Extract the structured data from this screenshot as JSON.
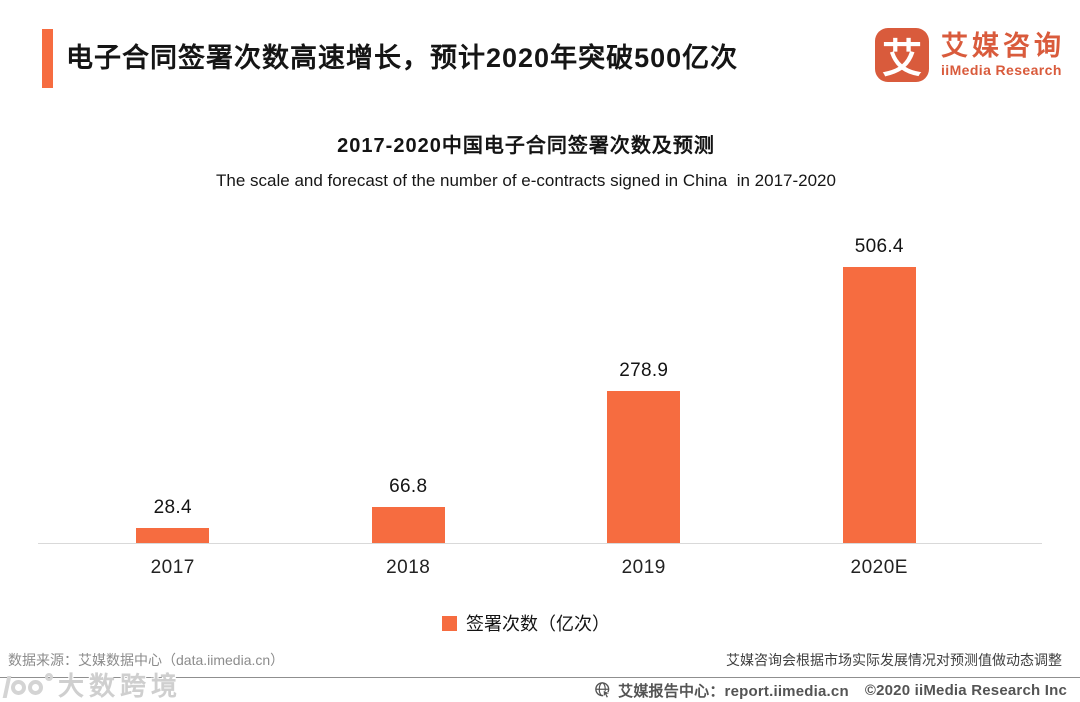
{
  "header": {
    "title": "电子合同签署次数高速增长，预计2020年突破500亿次",
    "logo": {
      "glyph": "艾",
      "name_cn": "艾媒咨询",
      "name_en": "iiMedia Research"
    }
  },
  "chart_data": {
    "type": "bar",
    "title": "2017-2020中国电子合同签署次数及预测",
    "subtitle": "The scale and forecast of the number of e-contracts signed in China  in 2017-2020",
    "categories": [
      "2017",
      "2018",
      "2019",
      "2020E"
    ],
    "series": [
      {
        "name": "签署次数（亿次）",
        "values": [
          28.4,
          66.8,
          278.9,
          506.4
        ]
      }
    ],
    "xlabel": "",
    "ylabel": "",
    "ylim": [
      0,
      550
    ],
    "gridlines": false,
    "data_labels": true,
    "legend_position": "bottom",
    "bar_color": "#F66C40"
  },
  "footer": {
    "source_note": "数据来源：艾媒数据中心（data.iimedia.cn）",
    "forecast_note": "艾媒咨询会根据市场实际发展情况对预测值做动态调整",
    "report_center": "艾媒报告中心：report.iimedia.cn",
    "copyright": "©2020  iiMedia Research  Inc"
  },
  "watermark": {
    "text": "大数跨境"
  },
  "colors": {
    "accent_orange": "#F66C40",
    "logo_orange": "#D95B3C",
    "axis_line": "#d9d9d9",
    "separator": "#8f8f8f"
  }
}
